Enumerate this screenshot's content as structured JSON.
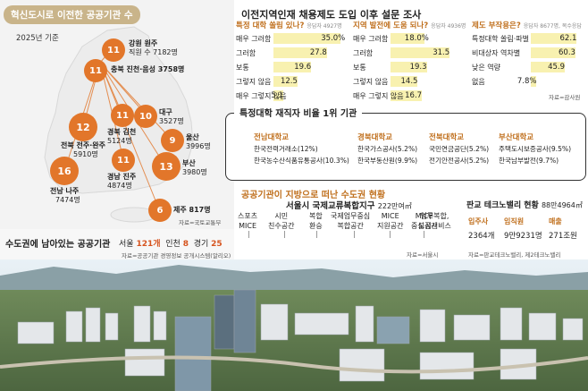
{
  "map": {
    "title": "혁신도시로 이전한 공공기관 수",
    "year": "2025년 기준",
    "source": "자료=국토교통부",
    "cities": [
      {
        "count": "11",
        "line1": "강원 원주",
        "line2": "직원 수 7182명"
      },
      {
        "count": "11",
        "line1": "충북 진천·음성 3758명",
        "line2": ""
      },
      {
        "count": "10",
        "line1": "대구",
        "line2": "3527명"
      },
      {
        "count": "11",
        "line1": "경북 김천",
        "line2": "5124명"
      },
      {
        "count": "12",
        "line1": "전북 전주·완주",
        "line2": "5910명"
      },
      {
        "count": "9",
        "line1": "울산",
        "line2": "3996명"
      },
      {
        "count": "11",
        "line1": "경남 진주",
        "line2": "4874명"
      },
      {
        "count": "13",
        "line1": "부산",
        "line2": "3980명"
      },
      {
        "count": "16",
        "line1": "전남 나주",
        "line2": "7474명"
      },
      {
        "count": "6",
        "line1": "제주 817명",
        "line2": ""
      }
    ]
  },
  "capital": {
    "title": "수도권에 남아있는 공공기관",
    "items": [
      {
        "name": "서울",
        "value": "121개"
      },
      {
        "name": "인천",
        "value": "8"
      },
      {
        "name": "경기",
        "value": "25"
      }
    ],
    "source": "자료=공공기관 경영정보 공개시스템(알리오)"
  },
  "survey": {
    "title": "이전지역인재 채용제도 도입 이후 설문 조사",
    "source": "자료=감사원"
  },
  "chart_data": [
    {
      "type": "bar",
      "title": "특정 대학 쏠림 있나?",
      "note": "응답자 4927명",
      "categories": [
        "매우 그러함",
        "그러함",
        "보통",
        "그렇지 않음",
        "매우 그렇지 않음"
      ],
      "values": [
        35.0,
        27.8,
        19.6,
        12.5,
        5.1
      ],
      "value_labels": [
        "35.0%",
        "27.8",
        "19.6",
        "12.5",
        "5.1"
      ],
      "xlim": [
        0,
        40
      ]
    },
    {
      "type": "bar",
      "title": "지역 발전에 도움 되나?",
      "note": "응답자 4936명",
      "categories": [
        "매우 그러함",
        "그러함",
        "보통",
        "그렇지 않음",
        "매우 그렇지 않음"
      ],
      "values": [
        18.0,
        31.5,
        19.3,
        14.5,
        16.7
      ],
      "value_labels": [
        "18.0%",
        "31.5",
        "19.3",
        "14.5",
        "16.7"
      ],
      "xlim": [
        0,
        40
      ]
    },
    {
      "type": "bar",
      "title": "제도 부작용은?",
      "note": "응답자 8677명, 복수응답",
      "categories": [
        "특정대학 쏠림·파벌",
        "비대상자 역차별",
        "낮은 역량",
        "없음"
      ],
      "values": [
        62.1,
        60.3,
        45.9,
        7.8
      ],
      "value_labels": [
        "62.1",
        "60.3",
        "45.9",
        "7.8%"
      ],
      "xlim": [
        0,
        70
      ]
    }
  ],
  "institutions": {
    "title": "특정대학 재직자 비율 1위 기관",
    "columns": [
      {
        "uni": "전남대학교",
        "lines": [
          "한국전력거래소(12%)",
          "한국농수산식품유통공사(10.3%)"
        ]
      },
      {
        "uni": "경북대학교",
        "lines": [
          "한국가스공사(5.2%)",
          "한국부동산원(9.9%)"
        ]
      },
      {
        "uni": "전북대학교",
        "lines": [
          "국민연금공단(5.2%)",
          "전기안전공사(5.2%)"
        ]
      },
      {
        "uni": "부산대학교",
        "lines": [
          "주택도시보증공사(9.5%)",
          "한국남부발전(9.7%)"
        ]
      }
    ]
  },
  "cities": {
    "title": "공공기관이 지방으로 떠난 수도권 현황",
    "seoul": {
      "name": "서울시 국제교류복합지구",
      "area": "222만여㎡",
      "zones": [
        {
          "l1": "스포츠",
          "l2": "MICE"
        },
        {
          "l1": "시민",
          "l2": "친수공간"
        },
        {
          "l1": "복합",
          "l2": "환승"
        },
        {
          "l1": "국제업무중심",
          "l2": "복합공간"
        },
        {
          "l1": "MICE",
          "l2": "지원공간"
        },
        {
          "l1": "MICE",
          "l2": "중심공간"
        },
        {
          "l1": "업무복합,",
          "l2": "도심서비스"
        }
      ],
      "source": "자료=서울시"
    },
    "pangyo": {
      "name": "판교 테크노밸리 현황",
      "area": "88만4964㎡",
      "stats": [
        {
          "label": "입주사",
          "value": "2364개"
        },
        {
          "label": "임직원",
          "value": "9만9231명"
        },
        {
          "label": "매출",
          "value": "271조원"
        }
      ],
      "source": "자료=판교테크노밸리, 제2테크노밸리"
    }
  },
  "colors": {
    "accent": "#e2762a",
    "label": "#c0701e",
    "bar": "#f8f1b0",
    "pill": "#c9b48a"
  }
}
